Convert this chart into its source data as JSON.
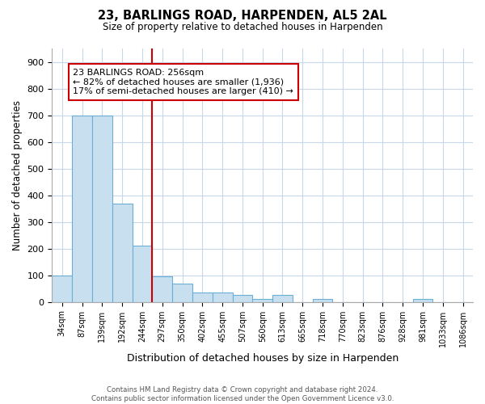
{
  "title": "23, BARLINGS ROAD, HARPENDEN, AL5 2AL",
  "subtitle": "Size of property relative to detached houses in Harpenden",
  "xlabel": "Distribution of detached houses by size in Harpenden",
  "ylabel": "Number of detached properties",
  "categories": [
    "34sqm",
    "87sqm",
    "139sqm",
    "192sqm",
    "244sqm",
    "297sqm",
    "350sqm",
    "402sqm",
    "455sqm",
    "507sqm",
    "560sqm",
    "613sqm",
    "665sqm",
    "718sqm",
    "770sqm",
    "823sqm",
    "876sqm",
    "928sqm",
    "981sqm",
    "1033sqm",
    "1086sqm"
  ],
  "values": [
    100,
    700,
    700,
    370,
    210,
    95,
    70,
    35,
    35,
    25,
    10,
    25,
    0,
    10,
    0,
    0,
    0,
    0,
    10,
    0,
    0
  ],
  "bar_color": "#c8dff0",
  "bar_edge_color": "#6baed6",
  "highlight_bar_index": 4,
  "vline_color": "#cc0000",
  "annotation_line1": "23 BARLINGS ROAD: 256sqm",
  "annotation_line2": "← 82% of detached houses are smaller (1,936)",
  "annotation_line3": "17% of semi-detached houses are larger (410) →",
  "annotation_box_color": "#ffffff",
  "annotation_box_edge_color": "#cc0000",
  "ylim": [
    0,
    950
  ],
  "yticks": [
    0,
    100,
    200,
    300,
    400,
    500,
    600,
    700,
    800,
    900
  ],
  "footer_text": "Contains HM Land Registry data © Crown copyright and database right 2024.\nContains public sector information licensed under the Open Government Licence v3.0.",
  "background_color": "#ffffff",
  "grid_color": "#c8d8e8"
}
